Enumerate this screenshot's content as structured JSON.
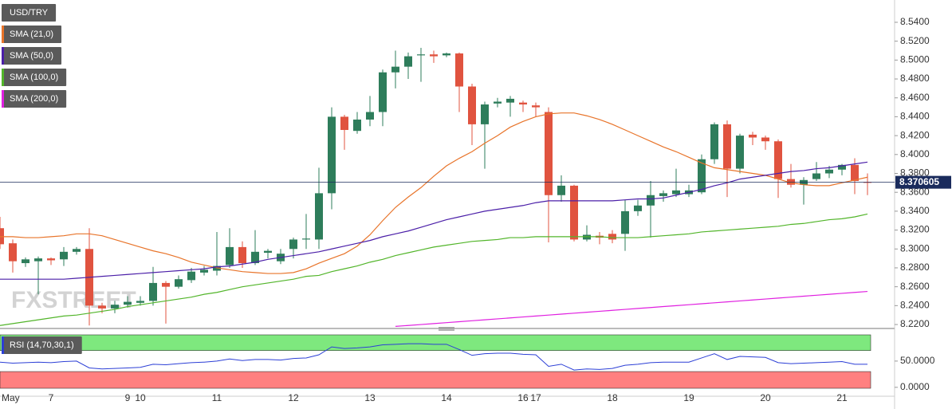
{
  "watermark": "FXSTREET",
  "chart_data": [
    {
      "type": "candlestick",
      "name": "USD/TRY",
      "categories": [
        "May",
        null,
        null,
        null,
        "7",
        null,
        null,
        null,
        null,
        null,
        "9",
        "10",
        null,
        null,
        null,
        null,
        null,
        "11",
        null,
        null,
        null,
        null,
        null,
        "12",
        null,
        null,
        null,
        null,
        null,
        "13",
        null,
        null,
        null,
        null,
        null,
        "14",
        null,
        null,
        null,
        null,
        null,
        "16",
        "17",
        null,
        null,
        null,
        null,
        null,
        "18",
        null,
        null,
        null,
        null,
        null,
        "19",
        null,
        null,
        null,
        null,
        null,
        "20",
        null,
        null,
        null,
        null,
        null,
        "21",
        null,
        null
      ],
      "open": [
        8.322,
        8.306,
        8.285,
        8.287,
        8.29,
        8.289,
        8.297,
        8.3,
        8.24,
        8.237,
        8.241,
        8.243,
        8.245,
        8.264,
        8.26,
        8.267,
        8.275,
        8.277,
        8.283,
        8.302,
        8.285,
        8.296,
        8.287,
        8.3,
        8.31,
        8.31,
        8.359,
        8.44,
        8.425,
        8.437,
        8.445,
        8.487,
        8.493,
        8.505,
        8.506,
        8.505,
        8.507,
        8.472,
        8.432,
        8.454,
        8.455,
        8.455,
        8.452,
        8.445,
        8.357,
        8.367,
        8.31,
        8.314,
        8.316,
        8.316,
        8.34,
        8.346,
        8.356,
        8.358,
        8.358,
        8.36,
        8.395,
        8.432,
        8.385,
        8.421,
        8.418,
        8.414,
        8.374,
        8.368,
        8.374,
        8.38,
        8.384,
        8.389,
        8.371
      ],
      "high": [
        8.334,
        8.31,
        8.291,
        8.292,
        8.291,
        8.302,
        8.302,
        8.322,
        8.243,
        8.245,
        8.25,
        8.25,
        8.281,
        8.266,
        8.272,
        8.28,
        8.282,
        8.318,
        8.322,
        8.308,
        8.32,
        8.3,
        8.3,
        8.312,
        8.337,
        8.386,
        8.45,
        8.442,
        8.445,
        8.462,
        8.49,
        8.51,
        8.508,
        8.513,
        8.51,
        8.508,
        8.508,
        8.475,
        8.456,
        8.46,
        8.462,
        8.457,
        8.455,
        8.45,
        8.378,
        8.368,
        8.325,
        8.318,
        8.32,
        8.352,
        8.352,
        8.372,
        8.362,
        8.385,
        8.368,
        8.4,
        8.434,
        8.436,
        8.422,
        8.424,
        8.42,
        8.416,
        8.39,
        8.376,
        8.392,
        8.388,
        8.39,
        8.396,
        8.38
      ],
      "low": [
        8.3,
        8.275,
        8.281,
        8.252,
        8.283,
        8.282,
        8.294,
        8.219,
        8.232,
        8.232,
        8.238,
        8.24,
        8.24,
        8.221,
        8.258,
        8.264,
        8.272,
        8.272,
        8.28,
        8.28,
        8.283,
        8.29,
        8.284,
        8.29,
        8.3,
        8.3,
        8.342,
        8.405,
        8.422,
        8.43,
        8.43,
        8.47,
        8.48,
        8.477,
        8.497,
        8.503,
        8.445,
        8.41,
        8.385,
        8.45,
        8.44,
        8.445,
        8.44,
        8.307,
        8.35,
        8.308,
        8.308,
        8.305,
        8.306,
        8.298,
        8.335,
        8.312,
        8.35,
        8.355,
        8.355,
        8.358,
        8.39,
        8.355,
        8.38,
        8.41,
        8.405,
        8.354,
        8.365,
        8.347,
        8.372,
        8.375,
        8.378,
        8.358,
        8.357
      ],
      "close": [
        8.305,
        8.287,
        8.289,
        8.29,
        8.288,
        8.297,
        8.3,
        8.24,
        8.237,
        8.241,
        8.244,
        8.245,
        8.264,
        8.26,
        8.268,
        8.276,
        8.278,
        8.282,
        8.302,
        8.285,
        8.297,
        8.298,
        8.295,
        8.31,
        8.311,
        8.359,
        8.44,
        8.426,
        8.437,
        8.445,
        8.487,
        8.493,
        8.504,
        8.506,
        8.504,
        8.507,
        8.472,
        8.432,
        8.453,
        8.456,
        8.459,
        8.453,
        8.45,
        8.357,
        8.367,
        8.31,
        8.315,
        8.312,
        8.31,
        8.34,
        8.346,
        8.357,
        8.359,
        8.362,
        8.362,
        8.395,
        8.432,
        8.385,
        8.42,
        8.418,
        8.414,
        8.374,
        8.368,
        8.373,
        8.38,
        8.384,
        8.389,
        8.372,
        8.37
      ],
      "up_color": "#2e7d5b",
      "down_color": "#e0533f",
      "series": [
        {
          "name": "SMA (21,0)",
          "color": "#e8742a",
          "values": [
            8.313,
            8.313,
            8.312,
            8.312,
            8.313,
            8.314,
            8.316,
            8.316,
            8.314,
            8.31,
            8.306,
            8.302,
            8.298,
            8.295,
            8.291,
            8.286,
            8.283,
            8.28,
            8.278,
            8.276,
            8.275,
            8.274,
            8.274,
            8.275,
            8.279,
            8.285,
            8.29,
            8.295,
            8.303,
            8.315,
            8.33,
            8.344,
            8.355,
            8.365,
            8.377,
            8.388,
            8.396,
            8.403,
            8.412,
            8.42,
            8.429,
            8.435,
            8.44,
            8.443,
            8.444,
            8.444,
            8.441,
            8.437,
            8.432,
            8.426,
            8.42,
            8.414,
            8.408,
            8.403,
            8.397,
            8.391,
            8.386,
            8.384,
            8.382,
            8.38,
            8.378,
            8.374,
            8.37,
            8.368,
            8.367,
            8.367,
            8.37,
            8.373,
            8.376
          ]
        },
        {
          "name": "SMA (50,0)",
          "color": "#4b1fa8",
          "values": [
            8.268,
            8.268,
            8.268,
            8.268,
            8.268,
            8.268,
            8.269,
            8.27,
            8.271,
            8.272,
            8.273,
            8.274,
            8.275,
            8.276,
            8.277,
            8.278,
            8.279,
            8.281,
            8.282,
            8.284,
            8.286,
            8.289,
            8.291,
            8.293,
            8.295,
            8.297,
            8.3,
            8.303,
            8.306,
            8.309,
            8.313,
            8.316,
            8.319,
            8.323,
            8.327,
            8.331,
            8.334,
            8.337,
            8.34,
            8.342,
            8.344,
            8.346,
            8.349,
            8.351,
            8.351,
            8.351,
            8.351,
            8.351,
            8.351,
            8.352,
            8.353,
            8.353,
            8.354,
            8.357,
            8.36,
            8.363,
            8.367,
            8.37,
            8.374,
            8.376,
            8.378,
            8.38,
            8.382,
            8.383,
            8.385,
            8.386,
            8.388,
            8.39,
            8.392
          ]
        },
        {
          "name": "SMA (100,0)",
          "color": "#52b52a",
          "values": [
            8.219,
            8.221,
            8.223,
            8.225,
            8.227,
            8.229,
            8.23,
            8.232,
            8.234,
            8.236,
            8.239,
            8.241,
            8.243,
            8.245,
            8.247,
            8.249,
            8.252,
            8.254,
            8.257,
            8.26,
            8.262,
            8.264,
            8.266,
            8.268,
            8.271,
            8.272,
            8.276,
            8.279,
            8.282,
            8.286,
            8.289,
            8.293,
            8.296,
            8.299,
            8.302,
            8.304,
            8.306,
            8.308,
            8.309,
            8.31,
            8.312,
            8.312,
            8.313,
            8.313,
            8.313,
            8.313,
            8.313,
            8.313,
            8.312,
            8.312,
            8.312,
            8.313,
            8.314,
            8.315,
            8.316,
            8.318,
            8.319,
            8.32,
            8.321,
            8.322,
            8.323,
            8.324,
            8.326,
            8.327,
            8.329,
            8.331,
            8.332,
            8.334,
            8.337
          ]
        },
        {
          "name": "SMA (200,0)",
          "color": "#e020e0",
          "values": [
            null,
            null,
            null,
            null,
            null,
            null,
            null,
            null,
            null,
            null,
            null,
            null,
            null,
            null,
            null,
            null,
            null,
            null,
            null,
            null,
            null,
            null,
            null,
            null,
            null,
            null,
            null,
            null,
            null,
            null,
            null,
            8.218,
            8.219,
            8.22,
            8.221,
            8.222,
            8.223,
            8.224,
            8.225,
            8.226,
            8.227,
            8.228,
            8.229,
            8.23,
            8.231,
            8.232,
            8.233,
            8.234,
            8.235,
            8.236,
            8.237,
            8.238,
            8.239,
            8.24,
            8.241,
            8.242,
            8.243,
            8.244,
            8.245,
            8.246,
            8.247,
            8.248,
            8.249,
            8.25,
            8.251,
            8.252,
            8.253,
            8.254,
            8.255
          ]
        }
      ],
      "current_price": 8.370605,
      "current_price_color": "#1a2b5c",
      "ylim": [
        8.2175,
        8.5636
      ],
      "yticks": [
        {
          "value": 8.22,
          "label": "8.2200"
        },
        {
          "value": 8.24,
          "label": "8.2400"
        },
        {
          "value": 8.26,
          "label": "8.2600"
        },
        {
          "value": 8.28,
          "label": "8.2800"
        },
        {
          "value": 8.3,
          "label": "8.3000"
        },
        {
          "value": 8.32,
          "label": "8.3200"
        },
        {
          "value": 8.34,
          "label": "8.3400"
        },
        {
          "value": 8.36,
          "label": "8.3600"
        },
        {
          "value": 8.38,
          "label": "8.3800"
        },
        {
          "value": 8.4,
          "label": "8.4000"
        },
        {
          "value": 8.42,
          "label": "8.4200"
        },
        {
          "value": 8.44,
          "label": "8.4400"
        },
        {
          "value": 8.46,
          "label": "8.4600"
        },
        {
          "value": 8.48,
          "label": "8.4800"
        },
        {
          "value": 8.5,
          "label": "8.5000"
        },
        {
          "value": 8.52,
          "label": "8.5200"
        },
        {
          "value": 8.54,
          "label": "8.5400"
        }
      ]
    },
    {
      "type": "line",
      "series": [
        {
          "name": "RSI (14,70,30,1)",
          "color": "#2c3fd6",
          "values": [
            48,
            46,
            47,
            48,
            47,
            49,
            50,
            37,
            35,
            36,
            37,
            38,
            44,
            43,
            45,
            47,
            48,
            50,
            54,
            51,
            53,
            53,
            52,
            55,
            56,
            62,
            77,
            74,
            75,
            77,
            81,
            82,
            83,
            83,
            82,
            82,
            72,
            61,
            64,
            65,
            65,
            63,
            62,
            40,
            44,
            33,
            35,
            34,
            36,
            42,
            44,
            47,
            48,
            48,
            48,
            56,
            64,
            53,
            59,
            58,
            57,
            47,
            45,
            46,
            47,
            48,
            49,
            44,
            44
          ]
        }
      ],
      "overbought": 70,
      "oversold": 30,
      "overbought_color": "#7ee87e",
      "oversold_color": "#ff8080",
      "ylim": [
        -17,
        103
      ],
      "yticks": [
        {
          "value": 0,
          "label": "0.0000"
        },
        {
          "value": 50,
          "label": "50.0000"
        }
      ]
    }
  ]
}
